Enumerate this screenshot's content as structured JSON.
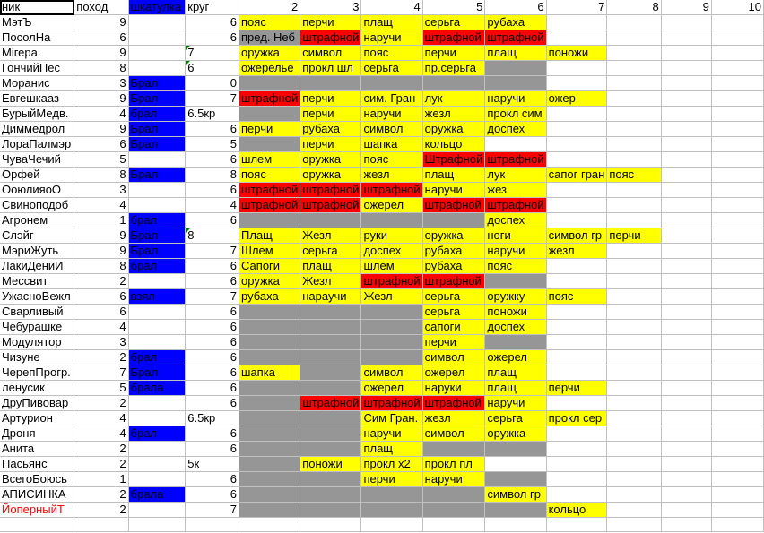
{
  "colors": {
    "y": "#ffff00",
    "r": "#ff0000",
    "g": "#969696",
    "b": "#0000ff",
    "w": "#ffffff",
    "name_red": "#ff0000"
  },
  "header": [
    "ник",
    "поход",
    "шкатулка",
    "круг",
    "2",
    "3",
    "4",
    "5",
    "6",
    "7",
    "8",
    "9",
    "10"
  ],
  "rows": [
    {
      "name": "МэтЪ",
      "pohod": "9",
      "box": "",
      "krug": "6",
      "cells": [
        [
          "пояс",
          "y"
        ],
        [
          "перчи",
          "y"
        ],
        [
          "плащ",
          "y"
        ],
        [
          "серьга",
          "y"
        ],
        [
          "рубаха",
          "y"
        ]
      ]
    },
    {
      "name": "ПосолНа",
      "pohod": "6",
      "box": "",
      "krug": "6",
      "cells": [
        [
          "пред. Неб",
          "g"
        ],
        [
          "штрафной",
          "r"
        ],
        [
          "наручи",
          "y"
        ],
        [
          "штрафной",
          "r"
        ],
        [
          "штрафной",
          "r"
        ]
      ]
    },
    {
      "name": "Мігера",
      "pohod": "9",
      "box": "",
      "krug": "7",
      "krug_text": true,
      "cells": [
        [
          "оружка",
          "y"
        ],
        [
          "символ",
          "y"
        ],
        [
          "пояс",
          "y"
        ],
        [
          "перчи",
          "y"
        ],
        [
          "плащ",
          "y"
        ],
        [
          "поножи",
          "y"
        ]
      ]
    },
    {
      "name": "ГончийПес",
      "pohod": "8",
      "box": "",
      "krug": "6",
      "krug_text": true,
      "cells": [
        [
          "ожерелье",
          "y"
        ],
        [
          "прокл шл",
          "y"
        ],
        [
          "серьга",
          "y"
        ],
        [
          "пр.серьга",
          "y"
        ],
        [
          "",
          "g"
        ]
      ]
    },
    {
      "name": "Моранис",
      "pohod": "3",
      "box": "Брал",
      "krug": "0",
      "cells": [
        [
          "",
          "g"
        ],
        [
          "",
          "g"
        ],
        [
          "",
          "g"
        ],
        [
          "",
          "g"
        ],
        [
          "",
          "g"
        ]
      ]
    },
    {
      "name": "Евгешкааз",
      "pohod": "9",
      "box": "Брал",
      "krug": "7",
      "cells": [
        [
          "штрафной",
          "r"
        ],
        [
          "перчи",
          "y"
        ],
        [
          "сим. Гран",
          "y"
        ],
        [
          "лук",
          "y"
        ],
        [
          "наручи",
          "y"
        ],
        [
          "ожер",
          "y"
        ]
      ]
    },
    {
      "name": "БурыйМедв.",
      "pohod": "4",
      "box": "брал",
      "krug": "6.5кр",
      "krug_text": true,
      "cells": [
        [
          "",
          "g"
        ],
        [
          "перчи",
          "y"
        ],
        [
          "наручи",
          "y"
        ],
        [
          "жезл",
          "y"
        ],
        [
          "прокл сим",
          "y"
        ]
      ]
    },
    {
      "name": "Диммедрол",
      "pohod": "9",
      "box": "Брал",
      "krug": "6",
      "cells": [
        [
          "перчи",
          "y"
        ],
        [
          "рубаха",
          "y"
        ],
        [
          "символ",
          "y"
        ],
        [
          "оружка",
          "y"
        ],
        [
          "доспех",
          "y"
        ]
      ]
    },
    {
      "name": "ЛораПалмэр",
      "pohod": "6",
      "box": "Брал",
      "krug": "5",
      "cells": [
        [
          "",
          "g"
        ],
        [
          "перчи",
          "y"
        ],
        [
          "шапка",
          "y"
        ],
        [
          "кольцо",
          "y"
        ]
      ]
    },
    {
      "name": "ЧуваЧечий",
      "pohod": "5",
      "box": "",
      "krug": "6",
      "cells": [
        [
          "шлем",
          "y"
        ],
        [
          "оружка",
          "y"
        ],
        [
          "пояс",
          "y"
        ],
        [
          "Штрафной",
          "r"
        ],
        [
          "штрафной",
          "r"
        ]
      ]
    },
    {
      "name": "Орфей",
      "pohod": "8",
      "box": "Брал",
      "krug": "8",
      "cells": [
        [
          "пояс",
          "y"
        ],
        [
          "оружка",
          "y"
        ],
        [
          "жезл",
          "y"
        ],
        [
          "плащ",
          "y"
        ],
        [
          "лук",
          "y"
        ],
        [
          "сапог гран",
          "y"
        ],
        [
          "пояс",
          "y"
        ]
      ]
    },
    {
      "name": "ОоюлияоО",
      "pohod": "3",
      "box": "",
      "krug": "6",
      "cells": [
        [
          "штрафной",
          "r"
        ],
        [
          "штрафной",
          "r"
        ],
        [
          "штрафной",
          "r"
        ],
        [
          "наручи",
          "y"
        ],
        [
          "жез",
          "y"
        ]
      ]
    },
    {
      "name": "Свиноподоб",
      "pohod": "4",
      "box": "",
      "krug": "4",
      "cells": [
        [
          "штрафной",
          "r"
        ],
        [
          "штрафной",
          "r"
        ],
        [
          "ожерел",
          "y"
        ],
        [
          "штрафной",
          "r"
        ],
        [
          "штрафной",
          "r"
        ]
      ]
    },
    {
      "name": "Агронем",
      "pohod": "1",
      "box": "брал",
      "krug": "6",
      "cells": [
        [
          "",
          "g"
        ],
        [
          "",
          "g"
        ],
        [
          "",
          "g"
        ],
        [
          "",
          "g"
        ],
        [
          "доспех",
          "y"
        ]
      ]
    },
    {
      "name": "Слэйг",
      "pohod": "9",
      "box": "Брал",
      "krug": "8",
      "krug_text": true,
      "cells": [
        [
          "Плащ",
          "y"
        ],
        [
          "Жезл",
          "y"
        ],
        [
          "руки",
          "y"
        ],
        [
          "оружка",
          "y"
        ],
        [
          "ноги",
          "y"
        ],
        [
          "символ гр",
          "y"
        ],
        [
          "перчи",
          "y"
        ]
      ]
    },
    {
      "name": "МэриЖуть",
      "pohod": "9",
      "box": "Брал",
      "krug": "7",
      "cells": [
        [
          "Шлем",
          "y"
        ],
        [
          "серьга",
          "y"
        ],
        [
          "доспех",
          "y"
        ],
        [
          "рубаха",
          "y"
        ],
        [
          "наручи",
          "y"
        ],
        [
          "жезл",
          "y"
        ]
      ]
    },
    {
      "name": "ЛакиДениИ",
      "pohod": "8",
      "box": "брал",
      "krug": "6",
      "cells": [
        [
          "Сапоги",
          "y"
        ],
        [
          "плащ",
          "y"
        ],
        [
          "шлем",
          "y"
        ],
        [
          "рубаха",
          "y"
        ],
        [
          "пояс",
          "y"
        ]
      ]
    },
    {
      "name": "Мессвит",
      "pohod": "2",
      "box": "",
      "krug": "6",
      "cells": [
        [
          "оружка",
          "y"
        ],
        [
          "Жезл",
          "y"
        ],
        [
          "штрафной",
          "r"
        ],
        [
          "штрафной",
          "r"
        ],
        [
          "",
          "g"
        ]
      ]
    },
    {
      "name": "УжасноВежл",
      "pohod": "6",
      "box": "взял",
      "krug": "7",
      "cells": [
        [
          "рубаха",
          "y"
        ],
        [
          "нараучи",
          "y"
        ],
        [
          "Жезл",
          "y"
        ],
        [
          "серьга",
          "y"
        ],
        [
          "оружку",
          "y"
        ],
        [
          "пояс",
          "y"
        ]
      ]
    },
    {
      "name": "Сварливый",
      "pohod": "6",
      "box": "",
      "krug": "6",
      "cells": [
        [
          "",
          "g"
        ],
        [
          "",
          "g"
        ],
        [
          "",
          "g"
        ],
        [
          "серьга",
          "y"
        ],
        [
          "поножи",
          "y"
        ]
      ]
    },
    {
      "name": "Чебурашке",
      "pohod": "4",
      "box": "",
      "krug": "6",
      "cells": [
        [
          "",
          "g"
        ],
        [
          "",
          "g"
        ],
        [
          "",
          "g"
        ],
        [
          "сапоги",
          "y"
        ],
        [
          "доспех",
          "y"
        ]
      ]
    },
    {
      "name": "Модулятор",
      "pohod": "3",
      "box": "",
      "krug": "6",
      "cells": [
        [
          "",
          "g"
        ],
        [
          "",
          "g"
        ],
        [
          "",
          "g"
        ],
        [
          "перчи",
          "y"
        ],
        [
          "",
          "g"
        ]
      ]
    },
    {
      "name": "Чизуне",
      "pohod": "2",
      "box": "брал",
      "krug": "6",
      "cells": [
        [
          "",
          "g"
        ],
        [
          "",
          "g"
        ],
        [
          "",
          "g"
        ],
        [
          "символ",
          "y"
        ],
        [
          "ожерел",
          "y"
        ]
      ]
    },
    {
      "name": "ЧерепПрогр.",
      "pohod": "7",
      "box": "Брал",
      "krug": "6",
      "cells": [
        [
          "шапка",
          "y"
        ],
        [
          "",
          "g"
        ],
        [
          "символ",
          "y"
        ],
        [
          "ожерел",
          "y"
        ],
        [
          "плащ",
          "y"
        ]
      ]
    },
    {
      "name": "ленусик",
      "pohod": "5",
      "box": "брала",
      "krug": "6",
      "cells": [
        [
          "",
          "g"
        ],
        [
          "",
          "g"
        ],
        [
          "ожерел",
          "y"
        ],
        [
          "наруки",
          "y"
        ],
        [
          "плащ",
          "y"
        ],
        [
          "перчи",
          "y"
        ]
      ]
    },
    {
      "name": "ДруПивовар",
      "pohod": "2",
      "box": "",
      "krug": "6",
      "cells": [
        [
          "",
          "g"
        ],
        [
          "штрафной",
          "r"
        ],
        [
          "штрафной",
          "r"
        ],
        [
          "штрафной",
          "r"
        ],
        [
          "наручи",
          "y"
        ]
      ]
    },
    {
      "name": "Артурион",
      "pohod": "4",
      "box": "",
      "krug": "6.5кр",
      "krug_text": true,
      "cells": [
        [
          "",
          "g"
        ],
        [
          "",
          "g"
        ],
        [
          "Сим Гран.",
          "y"
        ],
        [
          "жезл",
          "y"
        ],
        [
          "серьга",
          "y"
        ],
        [
          "прокл сер",
          "y"
        ]
      ]
    },
    {
      "name": "Дроня",
      "pohod": "4",
      "box": "брал",
      "krug": "6",
      "cells": [
        [
          "",
          "g"
        ],
        [
          "",
          "g"
        ],
        [
          "наручи",
          "y"
        ],
        [
          "символ",
          "y"
        ],
        [
          "оружка",
          "y"
        ]
      ]
    },
    {
      "name": "Анита",
      "pohod": "2",
      "box": "",
      "krug": "6",
      "cells": [
        [
          "",
          "g"
        ],
        [
          "",
          "g"
        ],
        [
          "плащ",
          "y"
        ],
        [
          "",
          "g"
        ],
        [
          "",
          "g"
        ]
      ]
    },
    {
      "name": "Пасьянс",
      "pohod": "2",
      "box": "",
      "krug": "5к",
      "krug_text": true,
      "cells": [
        [
          "",
          "g"
        ],
        [
          "поножи",
          "y"
        ],
        [
          "прокл x2",
          "y"
        ],
        [
          "прокл пл",
          "y"
        ]
      ]
    },
    {
      "name": "ВсегоБоюсь",
      "pohod": "1",
      "box": "",
      "krug": "6",
      "cells": [
        [
          "",
          "g"
        ],
        [
          "",
          "g"
        ],
        [
          "перчи",
          "y"
        ],
        [
          "наручи",
          "y"
        ],
        [
          "",
          "g"
        ]
      ]
    },
    {
      "name": "АПИСИНКА",
      "pohod": "2",
      "box": "брала",
      "krug": "6",
      "cells": [
        [
          "",
          "g"
        ],
        [
          "",
          "g"
        ],
        [
          "",
          "g"
        ],
        [
          "",
          "g"
        ],
        [
          "символ гр",
          "y"
        ]
      ]
    },
    {
      "name": "ЙоперныйТ",
      "pohod": "2",
      "box": "",
      "krug": "7",
      "name_red": true,
      "cells": [
        [
          "",
          "g"
        ],
        [
          "",
          "g"
        ],
        [
          "",
          "g"
        ],
        [
          "",
          "g"
        ],
        [
          "",
          "g"
        ],
        [
          "кольцо",
          "y"
        ]
      ]
    }
  ]
}
